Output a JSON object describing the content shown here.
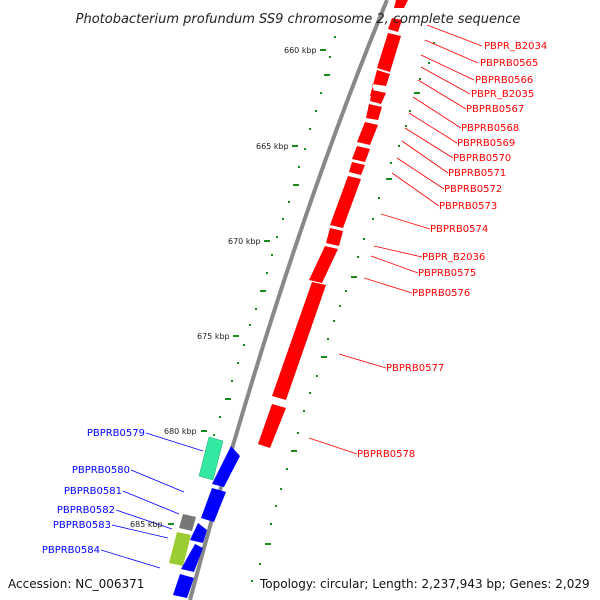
{
  "title": "Photobacterium profundum SS9 chromosome 2, complete sequence",
  "footer": {
    "accession": "Accession: NC_006371",
    "summary": "Topology: circular; Length: 2,237,943 bp; Genes: 2,029"
  },
  "ticks": [
    "660 kbp",
    "665 kbp",
    "670 kbp",
    "675 kbp",
    "680 kbp",
    "685 kbp"
  ],
  "colors": {
    "forward_gene": "#ff0000",
    "reverse_gene": "#0000ff",
    "backbone": "#888888",
    "gc_dots": "#1a8a1a",
    "rna_gene": "#33e8a0",
    "pseudo_gene": "#9acd32",
    "other_gene": "#777777"
  },
  "forward_genes": [
    "PBPR_B2034",
    "PBPRB0565",
    "PBPRB0566",
    "PBPR_B2035",
    "PBPRB0567",
    "PBPRB0568",
    "PBPRB0569",
    "PBPRB0570",
    "PBPRB0571",
    "PBPRB0572",
    "PBPRB0573",
    "PBPRB0574",
    "PBPR_B2036",
    "PBPRB0575",
    "PBPRB0576",
    "PBPRB0577",
    "PBPRB0578"
  ],
  "reverse_genes": [
    "PBPRB0579",
    "PBPRB0580",
    "PBPRB0581",
    "PBPRB0582",
    "PBPRB0583",
    "PBPRB0584"
  ]
}
